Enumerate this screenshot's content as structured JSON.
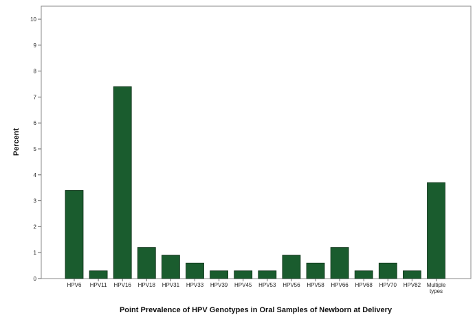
{
  "chart_data": {
    "type": "bar",
    "title": "",
    "xlabel": "Point Prevalence of HPV Genotypes in Oral Samples of Newborn at Delivery",
    "ylabel": "Percent",
    "ylim": [
      0,
      10
    ],
    "yticks": [
      "0",
      "1",
      "2",
      "3",
      "4",
      "5",
      "6",
      "7",
      "8",
      "9",
      "10"
    ],
    "grid": false,
    "legend": "none",
    "bar_color": "#1a5c2e",
    "categories": [
      "HPV6",
      "HPV11",
      "HPV16",
      "HPV18",
      "HPV31",
      "HPV33",
      "HPV39",
      "HPV45",
      "HPV53",
      "HPV56",
      "HPV58",
      "HPV66",
      "HPV68",
      "HPV70",
      "HPV82",
      "Multiple types"
    ],
    "values": [
      3.4,
      0.3,
      7.4,
      1.2,
      0.9,
      0.6,
      0.3,
      0.3,
      0.3,
      0.9,
      0.6,
      1.2,
      0.3,
      0.6,
      0.3,
      3.7
    ]
  }
}
